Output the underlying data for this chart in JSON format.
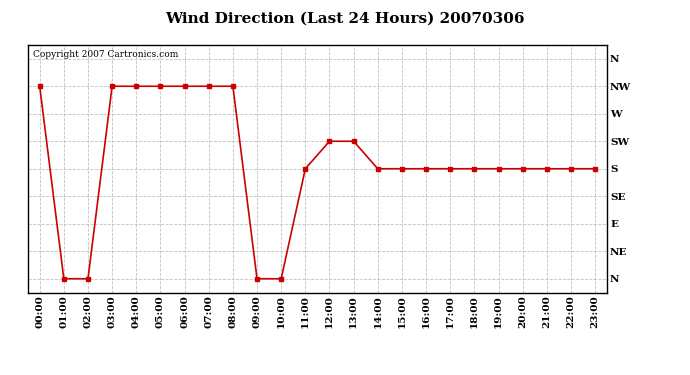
{
  "title": "Wind Direction (Last 24 Hours) 20070306",
  "copyright": "Copyright 2007 Cartronics.com",
  "background_color": "#ffffff",
  "line_color": "#cc0000",
  "grid_color": "#bbbbbb",
  "x_labels": [
    "00:00",
    "01:00",
    "02:00",
    "03:00",
    "04:00",
    "05:00",
    "06:00",
    "07:00",
    "08:00",
    "09:00",
    "10:00",
    "11:00",
    "12:00",
    "13:00",
    "14:00",
    "15:00",
    "16:00",
    "17:00",
    "18:00",
    "19:00",
    "20:00",
    "21:00",
    "22:00",
    "23:00"
  ],
  "y_labels": [
    "N",
    "NE",
    "E",
    "SE",
    "S",
    "SW",
    "W",
    "NW",
    "N"
  ],
  "y_values": [
    0,
    1,
    2,
    3,
    4,
    5,
    6,
    7,
    8
  ],
  "data_points": {
    "hours": [
      0,
      1,
      2,
      3,
      4,
      5,
      6,
      7,
      8,
      9,
      10,
      11,
      12,
      13,
      14,
      15,
      16,
      17,
      18,
      19,
      20,
      21,
      22,
      23
    ],
    "dirs": [
      7,
      0,
      0,
      7,
      7,
      7,
      7,
      7,
      7,
      0,
      0,
      4,
      5,
      5,
      4,
      4,
      4,
      4,
      4,
      4,
      4,
      4,
      4,
      4
    ]
  },
  "figsize": [
    6.9,
    3.75
  ],
  "dpi": 100,
  "title_fontsize": 11,
  "label_fontsize": 7.5,
  "copyright_fontsize": 6.5
}
